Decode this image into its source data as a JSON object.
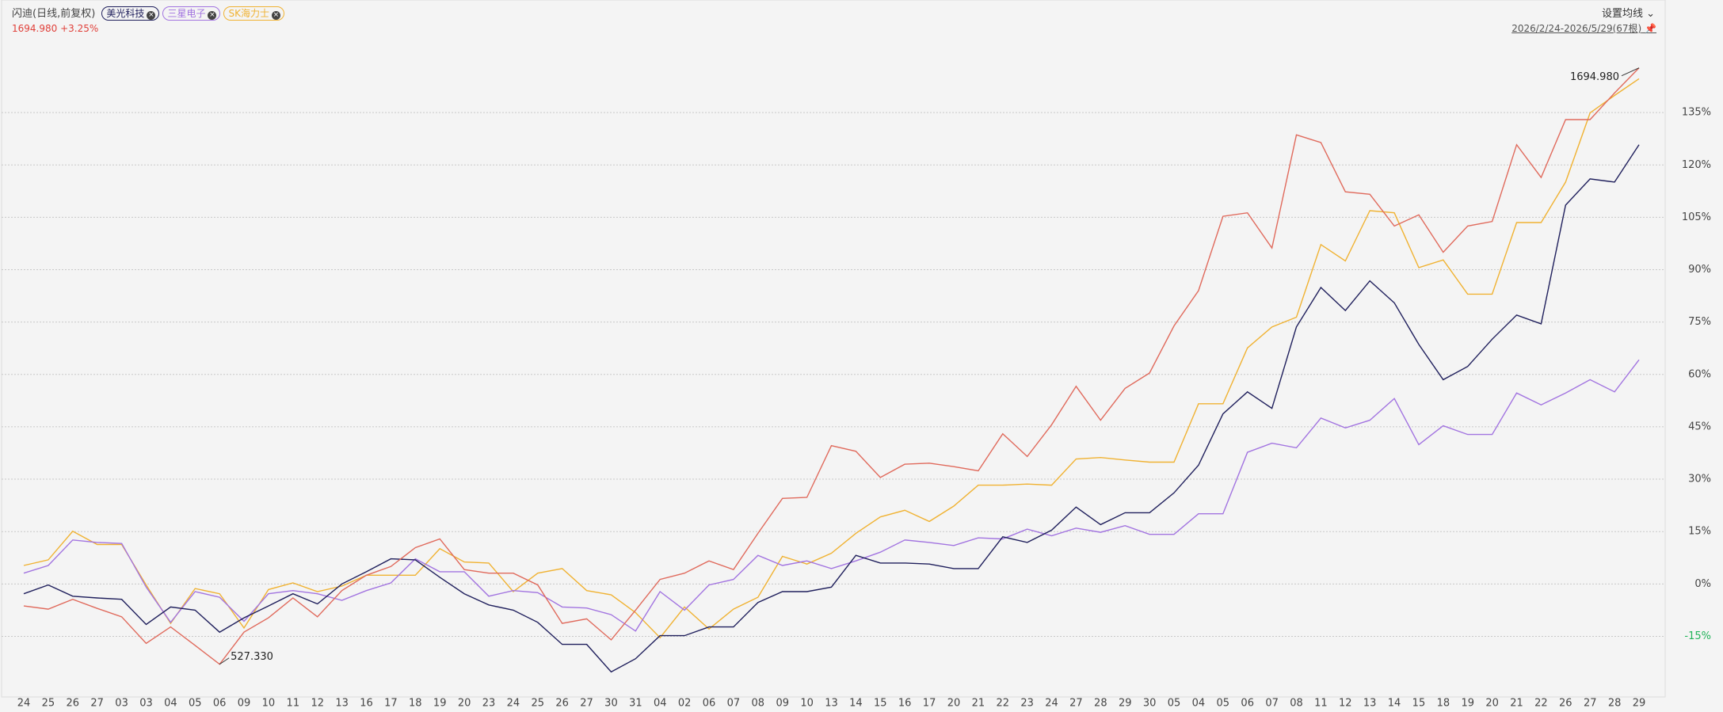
{
  "chart_data": {
    "type": "line",
    "title": "闪迪(日线,前复权)",
    "subtitle": "1694.980 +3.25%",
    "range_label": "2026/2/24-2026/5/29(67根)",
    "button": "设置均线",
    "annotations": [
      "1694.980",
      "527.330"
    ],
    "categories": [
      "24",
      "25",
      "26",
      "27",
      "03",
      "03",
      "04",
      "05",
      "06",
      "09",
      "10",
      "11",
      "12",
      "13",
      "16",
      "17",
      "18",
      "19",
      "20",
      "23",
      "24",
      "25",
      "26",
      "27",
      "30",
      "31",
      "04",
      "02",
      "06",
      "07",
      "08",
      "09",
      "10",
      "13",
      "14",
      "15",
      "16",
      "17",
      "20",
      "21",
      "22",
      "23",
      "24",
      "27",
      "28",
      "29",
      "30",
      "05",
      "04",
      "05",
      "06",
      "07",
      "08",
      "11",
      "12",
      "13",
      "14",
      "15",
      "18",
      "19",
      "20",
      "21",
      "22",
      "26",
      "27",
      "28",
      "29"
    ],
    "series": [
      {
        "color": "#e06a5c",
        "values": [
          -6.3,
          -7.2,
          -4.4,
          -7,
          -9.4,
          -17,
          -12.3,
          -17.6,
          -23,
          -13.8,
          -9.7,
          -4,
          -9.4,
          -1.9,
          2.5,
          5,
          10.4,
          12.9,
          4.1,
          3.1,
          3.1,
          -0.3,
          -11.3,
          -10,
          -16,
          -7.5,
          1.3,
          3.1,
          6.6,
          4.1,
          14.5,
          24.5,
          24.8,
          39.6,
          38,
          30.5,
          34.3,
          34.6,
          33.6,
          32.4,
          43,
          36.5,
          45.6,
          56.6,
          46.9,
          56,
          60.4,
          73.9,
          84,
          105.3,
          106.3,
          96.2,
          128.6,
          126.4,
          112.3,
          111.6,
          102.5,
          105.7,
          95,
          102.5,
          103.8,
          125.8,
          116.4,
          133,
          133,
          140.6,
          147.8
        ]
      },
      {
        "name": "美光科技",
        "color": "#1f1f5c",
        "values": [
          -2.8,
          -0.3,
          -3.5,
          -4,
          -4.4,
          -11.6,
          -6.6,
          -7.5,
          -13.8,
          -9.7,
          -6.3,
          -2.8,
          -5.7,
          0,
          3.5,
          7.2,
          6.9,
          1.9,
          -2.8,
          -6,
          -7.5,
          -11,
          -17.3,
          -17.3,
          -25.2,
          -21.4,
          -14.8,
          -14.8,
          -12.3,
          -12.3,
          -5.3,
          -2.2,
          -2.2,
          -0.9,
          8.2,
          6,
          6,
          5.7,
          4.4,
          4.4,
          13.5,
          11.9,
          15.4,
          22,
          17,
          20.4,
          20.4,
          26.1,
          34,
          48.7,
          55,
          50.3,
          73.6,
          84.9,
          78.3,
          86.8,
          80.5,
          68.6,
          58.5,
          62.3,
          70.1,
          77,
          74.5,
          108.5,
          116,
          115.1,
          125.8
        ]
      },
      {
        "name": "三星电子",
        "color": "#a274e0",
        "values": [
          3.1,
          5.3,
          12.6,
          11.9,
          11.6,
          -0.9,
          -11,
          -2.2,
          -3.8,
          -10.7,
          -2.8,
          -1.9,
          -2.8,
          -4.7,
          -1.9,
          0.3,
          7.2,
          3.5,
          3.5,
          -3.5,
          -1.9,
          -2.5,
          -6.6,
          -6.9,
          -8.8,
          -13.5,
          -2.2,
          -7.5,
          -0.3,
          1.3,
          8.2,
          5.3,
          6.6,
          4.4,
          6.6,
          9.1,
          12.6,
          11.9,
          11,
          13.2,
          12.9,
          15.7,
          13.8,
          16,
          14.8,
          16.7,
          14.2,
          14.2,
          20.1,
          20.1,
          37.7,
          40.3,
          39,
          47.5,
          44.7,
          46.9,
          53.1,
          39.9,
          45.3,
          42.8,
          42.8,
          54.7,
          51.3,
          54.7,
          58.5,
          55,
          64.2
        ]
      },
      {
        "name": "SK海力士",
        "color": "#f0b232",
        "values": [
          5.3,
          6.9,
          15.1,
          11.3,
          11.3,
          -0.3,
          -11.3,
          -1.3,
          -2.8,
          -12.6,
          -1.6,
          0.3,
          -2.2,
          -0.6,
          2.5,
          2.5,
          2.5,
          10.1,
          6.3,
          6,
          -2.2,
          3.1,
          4.4,
          -1.9,
          -3.1,
          -8.2,
          -15.4,
          -6.6,
          -12.9,
          -7.2,
          -3.8,
          7.9,
          5.7,
          8.8,
          14.5,
          19.2,
          21.1,
          17.9,
          22.3,
          28.3,
          28.3,
          28.6,
          28.3,
          35.8,
          36.2,
          35.5,
          34.9,
          34.9,
          51.6,
          51.6,
          67.6,
          73.6,
          76.4,
          97.2,
          92.5,
          106.9,
          106.3,
          90.6,
          92.8,
          83,
          83,
          103.5,
          103.5,
          115.1,
          134.9,
          139.9,
          144.7
        ]
      }
    ],
    "ylim": [
      -31,
      150
    ],
    "yticks": [
      {
        "value": -15,
        "label": "-15%"
      },
      {
        "value": 0,
        "label": "0%"
      },
      {
        "value": 15,
        "label": "15%"
      },
      {
        "value": 30,
        "label": "30%"
      },
      {
        "value": 45,
        "label": "45%"
      },
      {
        "value": 60,
        "label": "60%"
      },
      {
        "value": 75,
        "label": "75%"
      },
      {
        "value": 90,
        "label": "90%"
      },
      {
        "value": 105,
        "label": "105%"
      },
      {
        "value": 120,
        "label": "120%"
      },
      {
        "value": 135,
        "label": "135%"
      }
    ],
    "grid": true
  }
}
